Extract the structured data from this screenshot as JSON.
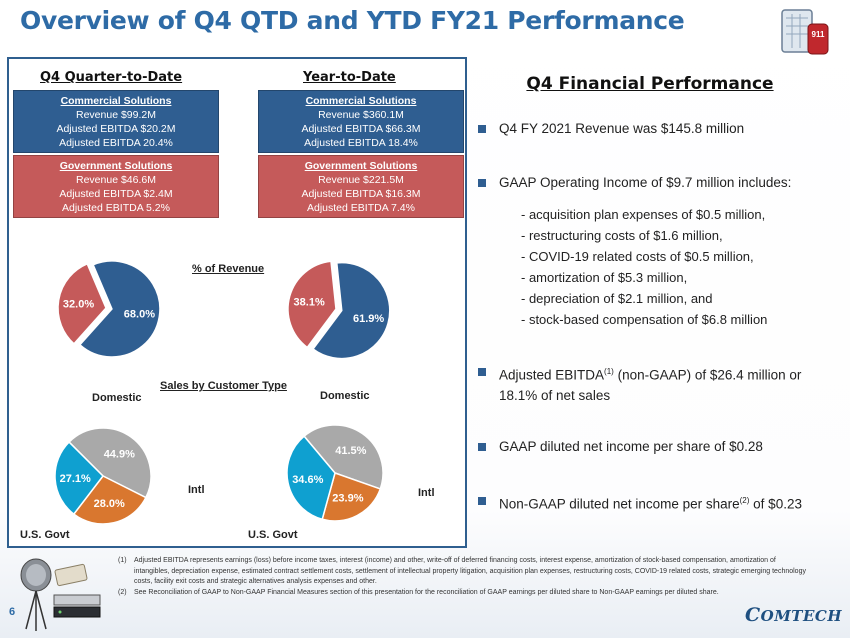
{
  "page": {
    "title": "Overview of Q4 QTD and YTD FY21 Performance",
    "page_number": "6",
    "logo_text": "COMTECH",
    "icon_label": "911"
  },
  "left": {
    "qtd_heading": "Q4 Quarter-to-Date",
    "ytd_heading": "Year-to-Date",
    "qtd": {
      "commercial": {
        "title": "Commercial Solutions",
        "lines": [
          "Revenue $99.2M",
          "Adjusted EBITDA $20.2M",
          "Adjusted EBITDA 20.4%"
        ]
      },
      "government": {
        "title": "Government Solutions",
        "lines": [
          "Revenue $46.6M",
          "Adjusted EBITDA $2.4M",
          "Adjusted EBITDA 5.2%"
        ]
      }
    },
    "ytd": {
      "commercial": {
        "title": "Commercial Solutions",
        "lines": [
          "Revenue $360.1M",
          "Adjusted EBITDA $66.3M",
          "Adjusted EBITDA 18.4%"
        ]
      },
      "government": {
        "title": "Government Solutions",
        "lines": [
          "Revenue $221.5M",
          "Adjusted EBITDA $16.3M",
          "Adjusted EBITDA 7.4%"
        ]
      }
    },
    "pct_revenue_label": "% of Revenue",
    "sales_by_customer_label": "Sales by Customer Type",
    "domestic_label": "Domestic",
    "intl_label": "Intl",
    "usgovt_label": "U.S. Govt"
  },
  "chart_data": [
    {
      "type": "pie",
      "title": "",
      "labels": [
        "Commercial Solutions",
        "Government Solutions"
      ],
      "values": [
        68.0,
        32.0
      ],
      "value_labels": [
        "68.0%",
        "32.0%"
      ],
      "colors": [
        "#2f5e91",
        "#c55a5a"
      ]
    },
    {
      "type": "pie",
      "title": "",
      "labels": [
        "Commercial Solutions",
        "Government Solutions"
      ],
      "values": [
        61.9,
        38.1
      ],
      "value_labels": [
        "61.9%",
        "38.1%"
      ],
      "colors": [
        "#2f5e91",
        "#c55a5a"
      ]
    },
    {
      "type": "pie",
      "title": "",
      "labels": [
        "Domestic",
        "Intl",
        "U.S. Govt"
      ],
      "values": [
        44.9,
        28.0,
        27.1
      ],
      "value_labels": [
        "44.9%",
        "28.0%",
        "27.1%"
      ],
      "colors": [
        "#a9a9a9",
        "#d9772f",
        "#0fa0d0"
      ]
    },
    {
      "type": "pie",
      "title": "",
      "labels": [
        "Domestic",
        "Intl",
        "U.S. Govt"
      ],
      "values": [
        41.5,
        23.9,
        34.6
      ],
      "value_labels": [
        "41.5%",
        "23.9%",
        "34.6%"
      ],
      "colors": [
        "#a9a9a9",
        "#d9772f",
        "#0fa0d0"
      ]
    }
  ],
  "right": {
    "title": "Q4 Financial Performance",
    "bullet1": "Q4 FY 2021 Revenue was $145.8 million",
    "bullet2": "GAAP Operating Income of $9.7 million includes:",
    "subitems": [
      "- acquisition plan expenses of $0.5 million,",
      "- restructuring costs of $1.6 million,",
      "- COVID-19 related costs of $0.5 million,",
      "- amortization of $5.3 million,",
      "- depreciation of $2.1 million, and",
      "- stock-based compensation of $6.8 million"
    ],
    "bullet3_a": "Adjusted EBITDA",
    "bullet3_sup": "(1)",
    "bullet3_b": " (non-GAAP) of $26.4 million or 18.1% of net sales",
    "bullet4": "GAAP diluted net income per share of $0.28",
    "bullet5_a": "Non-GAAP diluted net income per share",
    "bullet5_sup": "(2)",
    "bullet5_b": " of $0.23"
  },
  "footnotes": [
    {
      "num": "(1)",
      "text": "Adjusted EBITDA represents earnings (loss) before income taxes, interest (income) and other, write-off of deferred financing costs, interest expense, amortization of stock-based compensation, amortization of intangibles, depreciation expense, estimated contract settlement costs, settlement of intellectual property litigation, acquisition plan expenses, restructuring costs, COVID-19 related costs, strategic emerging technology costs, facility exit costs and strategic alternatives analysis expenses and other."
    },
    {
      "num": "(2)",
      "text": "See Reconciliation of GAAP to Non-GAAP Financial Measures section of this presentation for the reconciliation of GAAP earnings per diluted share to Non-GAAP earnings per diluted share."
    }
  ],
  "colors": {
    "title_blue": "#2e6ba6",
    "commercial_blue": "#2f5e91",
    "government_red": "#c55a5a",
    "domestic_gray": "#a9a9a9",
    "intl_orange": "#d9772f",
    "usgovt_cyan": "#0fa0d0"
  }
}
